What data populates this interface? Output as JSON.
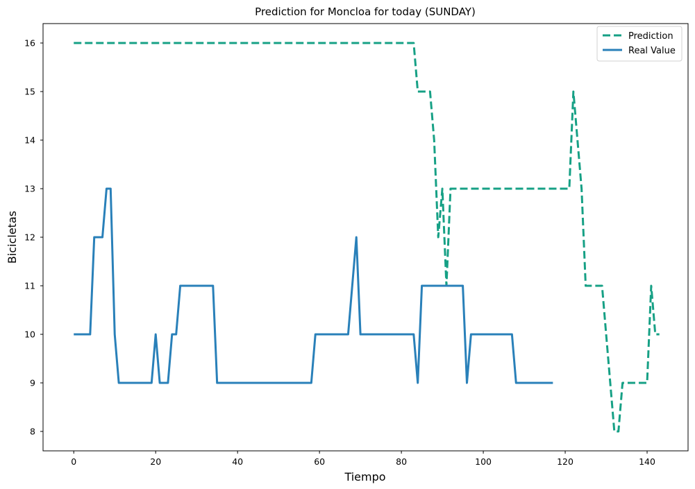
{
  "chart_data": {
    "type": "line",
    "title": "Prediction for Moncloa for today (SUNDAY)",
    "xlabel": "Tiempo",
    "ylabel": "Bicicletas",
    "xlim": [
      -7.5,
      150
    ],
    "ylim": [
      7.6,
      16.4
    ],
    "xticks": [
      0,
      20,
      40,
      60,
      80,
      100,
      120,
      140
    ],
    "yticks": [
      8,
      9,
      10,
      11,
      12,
      13,
      14,
      15,
      16
    ],
    "grid": false,
    "legend_position": "top-right",
    "series": [
      {
        "name": "Prediction",
        "style": "dashed",
        "color": "#16a085",
        "x": [
          0,
          83,
          84,
          87,
          88,
          89,
          90,
          91,
          92,
          121,
          122,
          124,
          125,
          129,
          132,
          133,
          134,
          140,
          141,
          142,
          143
        ],
        "y": [
          16,
          16,
          15,
          15,
          14,
          12,
          13,
          11,
          13,
          13,
          15,
          13,
          11,
          11,
          8,
          8,
          9,
          9,
          11,
          10,
          10
        ]
      },
      {
        "name": "Real Value",
        "style": "solid",
        "color": "#2980b9",
        "x": [
          0,
          4,
          5,
          7,
          8,
          9,
          10,
          11,
          19,
          20,
          21,
          23,
          24,
          25,
          26,
          34,
          35,
          58,
          59,
          67,
          69,
          70,
          83,
          84,
          85,
          95,
          96,
          97,
          107,
          108,
          117
        ],
        "y": [
          10,
          10,
          12,
          12,
          13,
          13,
          10,
          9,
          9,
          10,
          9,
          9,
          10,
          10,
          11,
          11,
          9,
          9,
          10,
          10,
          12,
          10,
          10,
          9,
          11,
          11,
          9,
          10,
          10,
          9,
          9
        ]
      }
    ]
  }
}
